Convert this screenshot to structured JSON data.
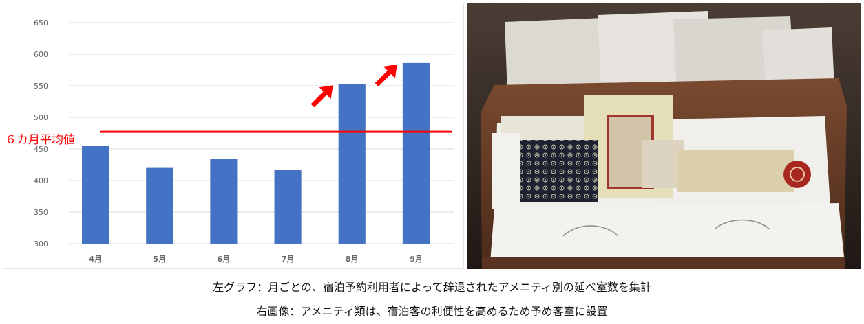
{
  "chart_data": {
    "type": "bar",
    "categories": [
      "4月",
      "5月",
      "6月",
      "7月",
      "8月",
      "9月"
    ],
    "values": [
      455,
      420,
      434,
      417,
      553,
      586
    ],
    "ylim": [
      300,
      650
    ],
    "yticks": [
      "650",
      "600",
      "550",
      "500",
      "450",
      "400",
      "350",
      "300"
    ],
    "grid": true,
    "bar_color": "#4472c4",
    "average_line": {
      "label": "６カ月平均値",
      "value": 477,
      "color": "#ff0000"
    },
    "highlight_arrows_on": [
      "8月",
      "9月"
    ]
  },
  "photo": {
    "subject": "amenity-tray"
  },
  "captions": {
    "line1": "左グラフ：月ごとの、宿泊予約利用者によって辞退されたアメニティ別の延べ室数を集計",
    "line2": "右画像：アメニティ類は、宿泊客の利便性を高めるため予め客室に設置"
  }
}
